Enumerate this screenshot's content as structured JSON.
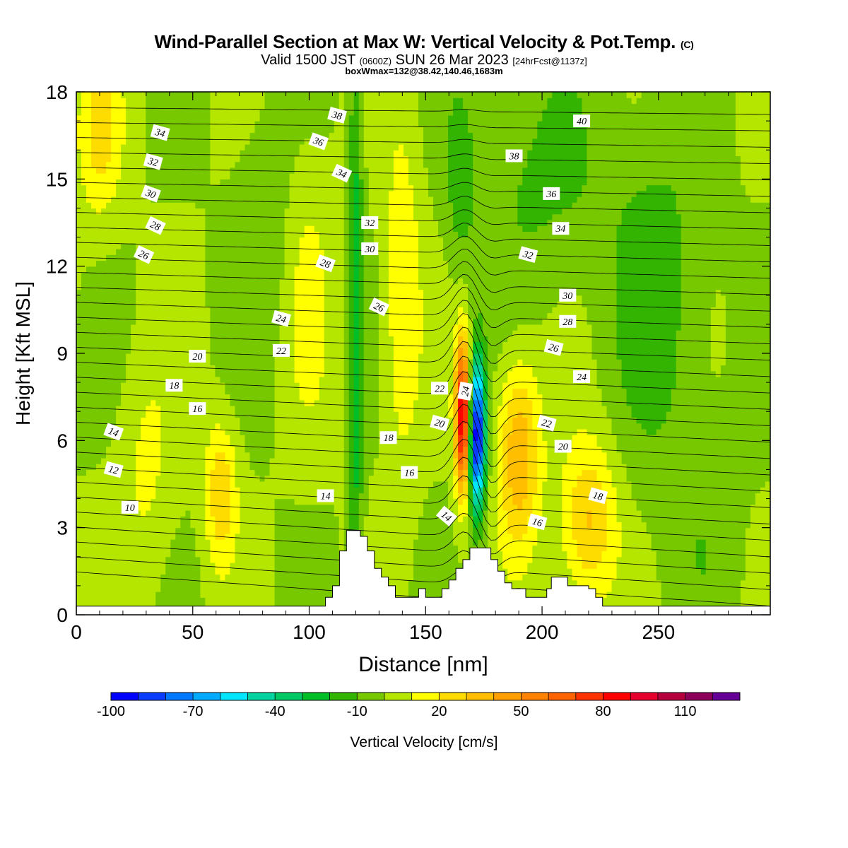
{
  "header": {
    "title_main": "Wind-Parallel Section at Max W: Vertical Velocity & Pot.Temp.",
    "title_tag": "(C)",
    "valid_a": "Valid 1500 JST",
    "valid_b": "(0600Z)",
    "valid_c": "SUN 26 Mar 2023",
    "valid_d": "[24hrFcst@1137z]",
    "box_note": "boxWmax=132@38.42,140.46,1683m"
  },
  "chart_data": {
    "type": "heatmap",
    "title": "Wind-Parallel Section at Max W: Vertical Velocity & Pot.Temp.",
    "xlabel": "Distance [nm]",
    "ylabel": "Height [Kft MSL]",
    "xlim": [
      0,
      298
    ],
    "ylim": [
      0,
      18
    ],
    "x_ticks": [
      "0",
      "50",
      "100",
      "150",
      "200",
      "250"
    ],
    "x_tick_values": [
      0,
      50,
      100,
      150,
      200,
      250
    ],
    "y_ticks": [
      "0",
      "3",
      "6",
      "9",
      "12",
      "15",
      "18"
    ],
    "y_tick_values": [
      0,
      3,
      6,
      9,
      12,
      15,
      18
    ],
    "grid": false,
    "colorbar": {
      "label": "Vertical Velocity [cm/s]",
      "tick_labels": [
        "-100",
        "-70",
        "-40",
        "-10",
        "20",
        "50",
        "80",
        "110"
      ],
      "tick_values": [
        -100,
        -70,
        -40,
        -10,
        20,
        50,
        80,
        110
      ],
      "min": -100,
      "max": 130,
      "step": 10,
      "colors": [
        "#0000ff",
        "#0a3cff",
        "#0078ff",
        "#00aaff",
        "#00e6ff",
        "#00d2a0",
        "#00c864",
        "#00be28",
        "#32b400",
        "#78c800",
        "#b4e600",
        "#ffff00",
        "#ffdc00",
        "#ffbe00",
        "#ffa000",
        "#ff8200",
        "#ff6400",
        "#ff3200",
        "#ff0000",
        "#e6002d",
        "#b4003c",
        "#8c005a",
        "#640096"
      ]
    },
    "w_field": {
      "background_cm_s": 0,
      "features": [
        {
          "x": 120,
          "z": 10,
          "w_cm_s": -25,
          "dx": 3,
          "dz": 13
        },
        {
          "x": 166,
          "z": 6.8,
          "w_cm_s": 95,
          "dx": 3.3,
          "dz": 2.6
        },
        {
          "x": 172,
          "z": 6.2,
          "w_cm_s": -100,
          "dx": 3.6,
          "dz": 2.6
        },
        {
          "x": 190,
          "z": 5.5,
          "w_cm_s": 40,
          "dx": 9,
          "dz": 3.2
        },
        {
          "x": 140,
          "z": 11,
          "w_cm_s": 20,
          "dx": 8,
          "dz": 6
        },
        {
          "x": 220,
          "z": 3.2,
          "w_cm_s": 32,
          "dx": 12,
          "dz": 2.8
        },
        {
          "x": 62,
          "z": 4.2,
          "w_cm_s": 28,
          "dx": 7,
          "dz": 2.5
        },
        {
          "x": 10,
          "z": 16.5,
          "w_cm_s": 22,
          "dx": 10,
          "dz": 3
        },
        {
          "x": 30,
          "z": 5,
          "w_cm_s": 12,
          "dx": 12,
          "dz": 4
        },
        {
          "x": 100,
          "z": 11,
          "w_cm_s": 12,
          "dx": 10,
          "dz": 5
        },
        {
          "x": 250,
          "z": 11,
          "w_cm_s": -15,
          "dx": 20,
          "dz": 6
        },
        {
          "x": 200,
          "z": 15,
          "w_cm_s": -12,
          "dx": 30,
          "dz": 4
        },
        {
          "x": 165,
          "z": 15,
          "w_cm_s": -14,
          "dx": 6,
          "dz": 3
        },
        {
          "x": 270,
          "z": 3,
          "w_cm_s": -6,
          "dx": 16,
          "dz": 4
        },
        {
          "x": 80,
          "z": 13,
          "w_cm_s": -8,
          "dx": 12,
          "dz": 4
        }
      ]
    },
    "theta_isentropes": {
      "levels": [
        10,
        11,
        12,
        13,
        14,
        15,
        16,
        17,
        18,
        19,
        20,
        21,
        22,
        23,
        24,
        25,
        26,
        27,
        28,
        29,
        30,
        31,
        32,
        33,
        34,
        35,
        36,
        37,
        38,
        39,
        40,
        41
      ],
      "labeled": [
        {
          "text": "10",
          "x": 23,
          "z": 3.7,
          "angle": 0
        },
        {
          "text": "12",
          "x": 16,
          "z": 5.0,
          "angle": 15
        },
        {
          "text": "14",
          "x": 16,
          "z": 6.3,
          "angle": 20
        },
        {
          "text": "16",
          "x": 52,
          "z": 7.1,
          "angle": 0
        },
        {
          "text": "18",
          "x": 42,
          "z": 7.9,
          "angle": 0
        },
        {
          "text": "20",
          "x": 52,
          "z": 8.9,
          "angle": 0
        },
        {
          "text": "22",
          "x": 88,
          "z": 9.1,
          "angle": 0
        },
        {
          "text": "24",
          "x": 88,
          "z": 10.2,
          "angle": 15
        },
        {
          "text": "26",
          "x": 29,
          "z": 12.4,
          "angle": 25
        },
        {
          "text": "28",
          "x": 34,
          "z": 13.4,
          "angle": 25
        },
        {
          "text": "30",
          "x": 32,
          "z": 14.5,
          "angle": 20
        },
        {
          "text": "32",
          "x": 33,
          "z": 15.6,
          "angle": 15
        },
        {
          "text": "34",
          "x": 36,
          "z": 16.6,
          "angle": 15
        },
        {
          "text": "14",
          "x": 107,
          "z": 4.1,
          "angle": 0
        },
        {
          "text": "28",
          "x": 107,
          "z": 12.1,
          "angle": 20
        },
        {
          "text": "34",
          "x": 114,
          "z": 15.2,
          "angle": 25
        },
        {
          "text": "36",
          "x": 104,
          "z": 16.3,
          "angle": 20
        },
        {
          "text": "38",
          "x": 112,
          "z": 17.2,
          "angle": 15
        },
        {
          "text": "16",
          "x": 143,
          "z": 4.9,
          "angle": 0
        },
        {
          "text": "18",
          "x": 134,
          "z": 6.1,
          "angle": 0
        },
        {
          "text": "32",
          "x": 126,
          "z": 13.5,
          "angle": 0
        },
        {
          "text": "30",
          "x": 126,
          "z": 12.6,
          "angle": 0
        },
        {
          "text": "26",
          "x": 130,
          "z": 10.6,
          "angle": 25
        },
        {
          "text": "20",
          "x": 156,
          "z": 6.6,
          "angle": 15
        },
        {
          "text": "22",
          "x": 156,
          "z": 7.8,
          "angle": 0
        },
        {
          "text": "24",
          "x": 167,
          "z": 7.7,
          "angle": -80
        },
        {
          "text": "14",
          "x": 159,
          "z": 3.4,
          "angle": 40
        },
        {
          "text": "16",
          "x": 198,
          "z": 3.2,
          "angle": 15
        },
        {
          "text": "20",
          "x": 209,
          "z": 5.8,
          "angle": 0
        },
        {
          "text": "22",
          "x": 202,
          "z": 6.6,
          "angle": 15
        },
        {
          "text": "18",
          "x": 224,
          "z": 4.1,
          "angle": 15
        },
        {
          "text": "24",
          "x": 217,
          "z": 8.2,
          "angle": 0
        },
        {
          "text": "26",
          "x": 205,
          "z": 9.2,
          "angle": 15
        },
        {
          "text": "28",
          "x": 211,
          "z": 10.1,
          "angle": 0
        },
        {
          "text": "30",
          "x": 211,
          "z": 11.0,
          "angle": 0
        },
        {
          "text": "32",
          "x": 194,
          "z": 12.4,
          "angle": 15
        },
        {
          "text": "34",
          "x": 208,
          "z": 13.3,
          "angle": 0
        },
        {
          "text": "36",
          "x": 204,
          "z": 14.5,
          "angle": 0
        },
        {
          "text": "38",
          "x": 188,
          "z": 15.8,
          "angle": 0
        },
        {
          "text": "40",
          "x": 217,
          "z": 17.0,
          "angle": 0
        }
      ]
    },
    "terrain_kft": [
      [
        0,
        0.3
      ],
      [
        107,
        0.3
      ],
      [
        107,
        0.6
      ],
      [
        110,
        0.6
      ],
      [
        110,
        1.0
      ],
      [
        113,
        1.0
      ],
      [
        113,
        2.2
      ],
      [
        116,
        2.2
      ],
      [
        116,
        2.9
      ],
      [
        122,
        2.9
      ],
      [
        122,
        2.7
      ],
      [
        125,
        2.7
      ],
      [
        125,
        2.2
      ],
      [
        128,
        2.2
      ],
      [
        128,
        1.6
      ],
      [
        131,
        1.6
      ],
      [
        131,
        1.3
      ],
      [
        134,
        1.3
      ],
      [
        134,
        1.0
      ],
      [
        137,
        1.0
      ],
      [
        137,
        0.6
      ],
      [
        147,
        0.6
      ],
      [
        147,
        0.9
      ],
      [
        150,
        0.9
      ],
      [
        150,
        0.6
      ],
      [
        157,
        0.6
      ],
      [
        157,
        0.9
      ],
      [
        160,
        0.9
      ],
      [
        160,
        1.2
      ],
      [
        163,
        1.2
      ],
      [
        163,
        1.6
      ],
      [
        166,
        1.6
      ],
      [
        166,
        1.9
      ],
      [
        169,
        1.9
      ],
      [
        169,
        2.3
      ],
      [
        178,
        2.3
      ],
      [
        178,
        1.9
      ],
      [
        181,
        1.9
      ],
      [
        181,
        1.5
      ],
      [
        184,
        1.5
      ],
      [
        184,
        1.1
      ],
      [
        187,
        1.1
      ],
      [
        187,
        0.9
      ],
      [
        193,
        0.9
      ],
      [
        193,
        0.6
      ],
      [
        202,
        0.6
      ],
      [
        202,
        0.9
      ],
      [
        204,
        0.9
      ],
      [
        204,
        1.3
      ],
      [
        211,
        1.3
      ],
      [
        211,
        1.0
      ],
      [
        220,
        1.0
      ],
      [
        220,
        0.9
      ],
      [
        223,
        0.9
      ],
      [
        223,
        0.6
      ],
      [
        226,
        0.6
      ],
      [
        226,
        0.3
      ],
      [
        298,
        0.3
      ]
    ]
  }
}
